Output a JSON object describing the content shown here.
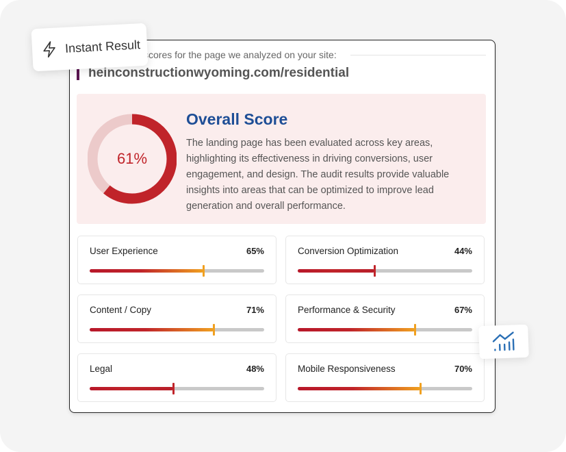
{
  "badge": {
    "label": "Instant Result",
    "icon": "lightning-icon"
  },
  "intro": "scores for the page we analyzed on your site:",
  "url": "heinconstructionwyoming.com/residential",
  "overall": {
    "score": 61,
    "score_label": "61%",
    "title": "Overall Score",
    "description": "The landing page has been evaluated across key areas, highlighting its effectiveness in driving conversions, user engagement, and design. The audit results provide valuable insights into areas that can be optimized to improve lead generation and overall performance."
  },
  "metrics": [
    {
      "label": "User Experience",
      "value": 65,
      "value_label": "65%"
    },
    {
      "label": "Conversion Optimization",
      "value": 44,
      "value_label": "44%"
    },
    {
      "label": "Content / Copy",
      "value": 71,
      "value_label": "71%"
    },
    {
      "label": "Performance & Security",
      "value": 67,
      "value_label": "67%"
    },
    {
      "label": "Legal",
      "value": 48,
      "value_label": "48%"
    },
    {
      "label": "Mobile Responsiveness",
      "value": 70,
      "value_label": "70%"
    }
  ],
  "colors": {
    "red": "#c0242a",
    "orange": "#f0a020",
    "blue": "#1e4e96",
    "panel": "#fbeded"
  },
  "chart_badge_icon": "growth-chart-icon"
}
